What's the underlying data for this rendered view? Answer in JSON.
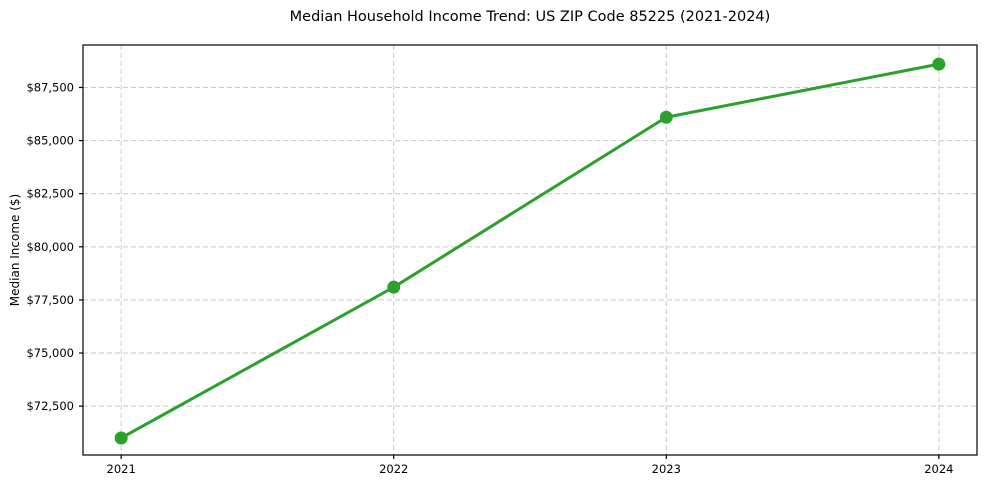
{
  "figure": {
    "title": "Median Household Income Trend: US ZIP Code 85225 (2021-2024)",
    "ylabel": "Median Income ($)"
  },
  "chart_data": {
    "type": "line",
    "title": "Median Household Income Trend: US ZIP Code 85225 (2021-2024)",
    "xlabel": "",
    "ylabel": "Median Income ($)",
    "x": [
      2021,
      2022,
      2023,
      2024
    ],
    "series": [
      {
        "name": "Median Household Income",
        "values": [
          71000,
          78100,
          86100,
          88600
        ],
        "color": "#2ca02c",
        "marker": "circle",
        "marker_radius": 6.5,
        "line_width": 3
      }
    ],
    "xticks": [
      {
        "value": 2021,
        "label": "2021"
      },
      {
        "value": 2022,
        "label": "2022"
      },
      {
        "value": 2023,
        "label": "2023"
      },
      {
        "value": 2024,
        "label": "2024"
      }
    ],
    "yticks": [
      {
        "value": 72500,
        "label": "$72,500"
      },
      {
        "value": 75000,
        "label": "$75,000"
      },
      {
        "value": 77500,
        "label": "$77,500"
      },
      {
        "value": 80000,
        "label": "$80,000"
      },
      {
        "value": 82500,
        "label": "$82,500"
      },
      {
        "value": 85000,
        "label": "$85,000"
      },
      {
        "value": 87500,
        "label": "$87,500"
      }
    ],
    "xlim": [
      2020.86,
      2024.14
    ],
    "ylim": [
      70200,
      89500
    ],
    "grid": true,
    "grid_style": "dashed",
    "legend_position": "none",
    "colors": {
      "line": "#2ca02c",
      "grid": "#c9c9c9",
      "axis": "#000000",
      "background": "#ffffff",
      "text": "#000000"
    }
  }
}
